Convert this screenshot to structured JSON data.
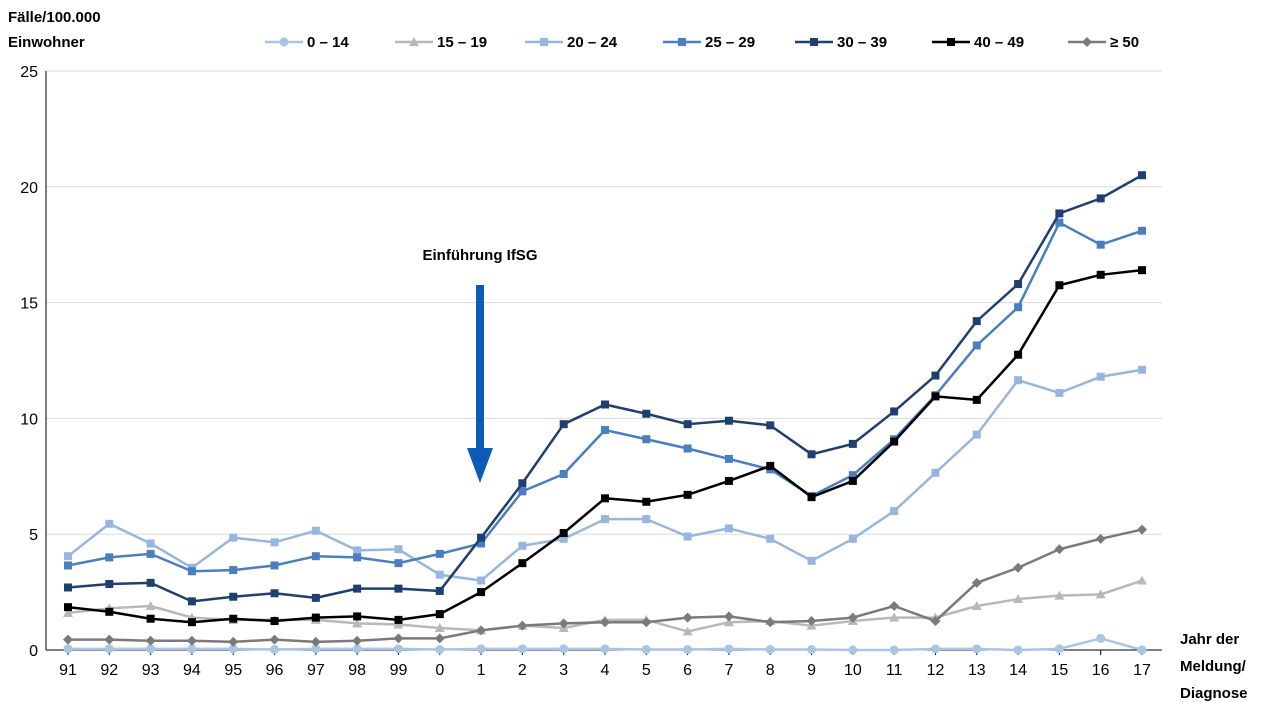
{
  "chart_data": {
    "type": "line",
    "ylabel_line1": "Fälle/100.000",
    "ylabel_line2": "Einwohner",
    "xlabel_line1": "Jahr der",
    "xlabel_line2": "Meldung/",
    "xlabel_line3": "Diagnose",
    "ylim": [
      0,
      25
    ],
    "yticks": [
      0,
      5,
      10,
      15,
      20,
      25
    ],
    "grid": true,
    "legend_position": "top",
    "categories": [
      "91",
      "92",
      "93",
      "94",
      "95",
      "96",
      "97",
      "98",
      "99",
      "0",
      "1",
      "2",
      "3",
      "4",
      "5",
      "6",
      "7",
      "8",
      "9",
      "10",
      "11",
      "12",
      "13",
      "14",
      "15",
      "16",
      "17"
    ],
    "annotation": {
      "text": "Einführung IfSG",
      "at_category": "1",
      "color": "#0a5cb8"
    },
    "series": [
      {
        "name": "0 – 14",
        "color": "#a9c4e4",
        "marker": "circle",
        "values": [
          0.05,
          0.05,
          0.05,
          0.05,
          0.05,
          0.02,
          0.05,
          0.05,
          0.05,
          0.02,
          0.05,
          0.05,
          0.05,
          0.05,
          0.02,
          0.02,
          0.05,
          0.02,
          0.02,
          0.0,
          0.0,
          0.05,
          0.05,
          0.0,
          0.05,
          0.5,
          0.0
        ]
      },
      {
        "name": "15 – 19",
        "color": "#b8b8b8",
        "marker": "triangle",
        "values": [
          1.6,
          1.8,
          1.9,
          1.4,
          1.3,
          1.3,
          1.3,
          1.15,
          1.1,
          0.95,
          0.85,
          1.05,
          0.95,
          1.3,
          1.3,
          0.8,
          1.2,
          1.25,
          1.05,
          1.25,
          1.4,
          1.4,
          1.9,
          2.2,
          2.35,
          2.4,
          3.0
        ]
      },
      {
        "name": "20 – 24",
        "color": "#96b6e0",
        "marker": "square",
        "values": [
          4.05,
          5.45,
          4.6,
          3.55,
          4.85,
          4.65,
          5.15,
          4.3,
          4.35,
          3.25,
          3.0,
          4.5,
          4.8,
          5.65,
          5.65,
          4.9,
          5.25,
          4.8,
          3.85,
          4.8,
          6.0,
          7.65,
          9.3,
          11.65,
          11.1,
          11.8,
          12.1
        ]
      },
      {
        "name": "25 – 29",
        "color": "#4a7ec0",
        "marker": "square",
        "values": [
          3.65,
          4.0,
          4.15,
          3.4,
          3.45,
          3.65,
          4.05,
          4.0,
          3.75,
          4.15,
          4.6,
          6.85,
          7.6,
          9.5,
          9.1,
          8.7,
          8.25,
          7.8,
          6.65,
          7.55,
          9.1,
          11.0,
          13.15,
          14.8,
          18.45,
          17.5,
          18.1
        ]
      },
      {
        "name": "30 – 39",
        "color": "#1f3f70",
        "marker": "square",
        "values": [
          2.7,
          2.85,
          2.9,
          2.1,
          2.3,
          2.45,
          2.25,
          2.65,
          2.65,
          2.55,
          4.85,
          7.2,
          9.75,
          10.6,
          10.2,
          9.75,
          9.9,
          9.7,
          8.45,
          8.9,
          10.3,
          11.85,
          14.2,
          15.8,
          18.85,
          19.5,
          20.5
        ]
      },
      {
        "name": "40 – 49",
        "color": "#000000",
        "marker": "square",
        "values": [
          1.85,
          1.65,
          1.35,
          1.2,
          1.35,
          1.25,
          1.4,
          1.45,
          1.3,
          1.55,
          2.5,
          3.75,
          5.05,
          6.55,
          6.4,
          6.7,
          7.3,
          7.95,
          6.6,
          7.3,
          9.0,
          10.95,
          10.8,
          12.75,
          15.75,
          16.2,
          16.4
        ]
      },
      {
        "name": "≥ 50",
        "color": "#7a7a7a",
        "marker": "diamond",
        "values": [
          0.45,
          0.45,
          0.4,
          0.4,
          0.35,
          0.45,
          0.35,
          0.4,
          0.5,
          0.5,
          0.85,
          1.05,
          1.15,
          1.2,
          1.2,
          1.4,
          1.45,
          1.2,
          1.25,
          1.4,
          1.9,
          1.25,
          2.9,
          3.55,
          4.35,
          4.8,
          5.2
        ]
      }
    ]
  }
}
